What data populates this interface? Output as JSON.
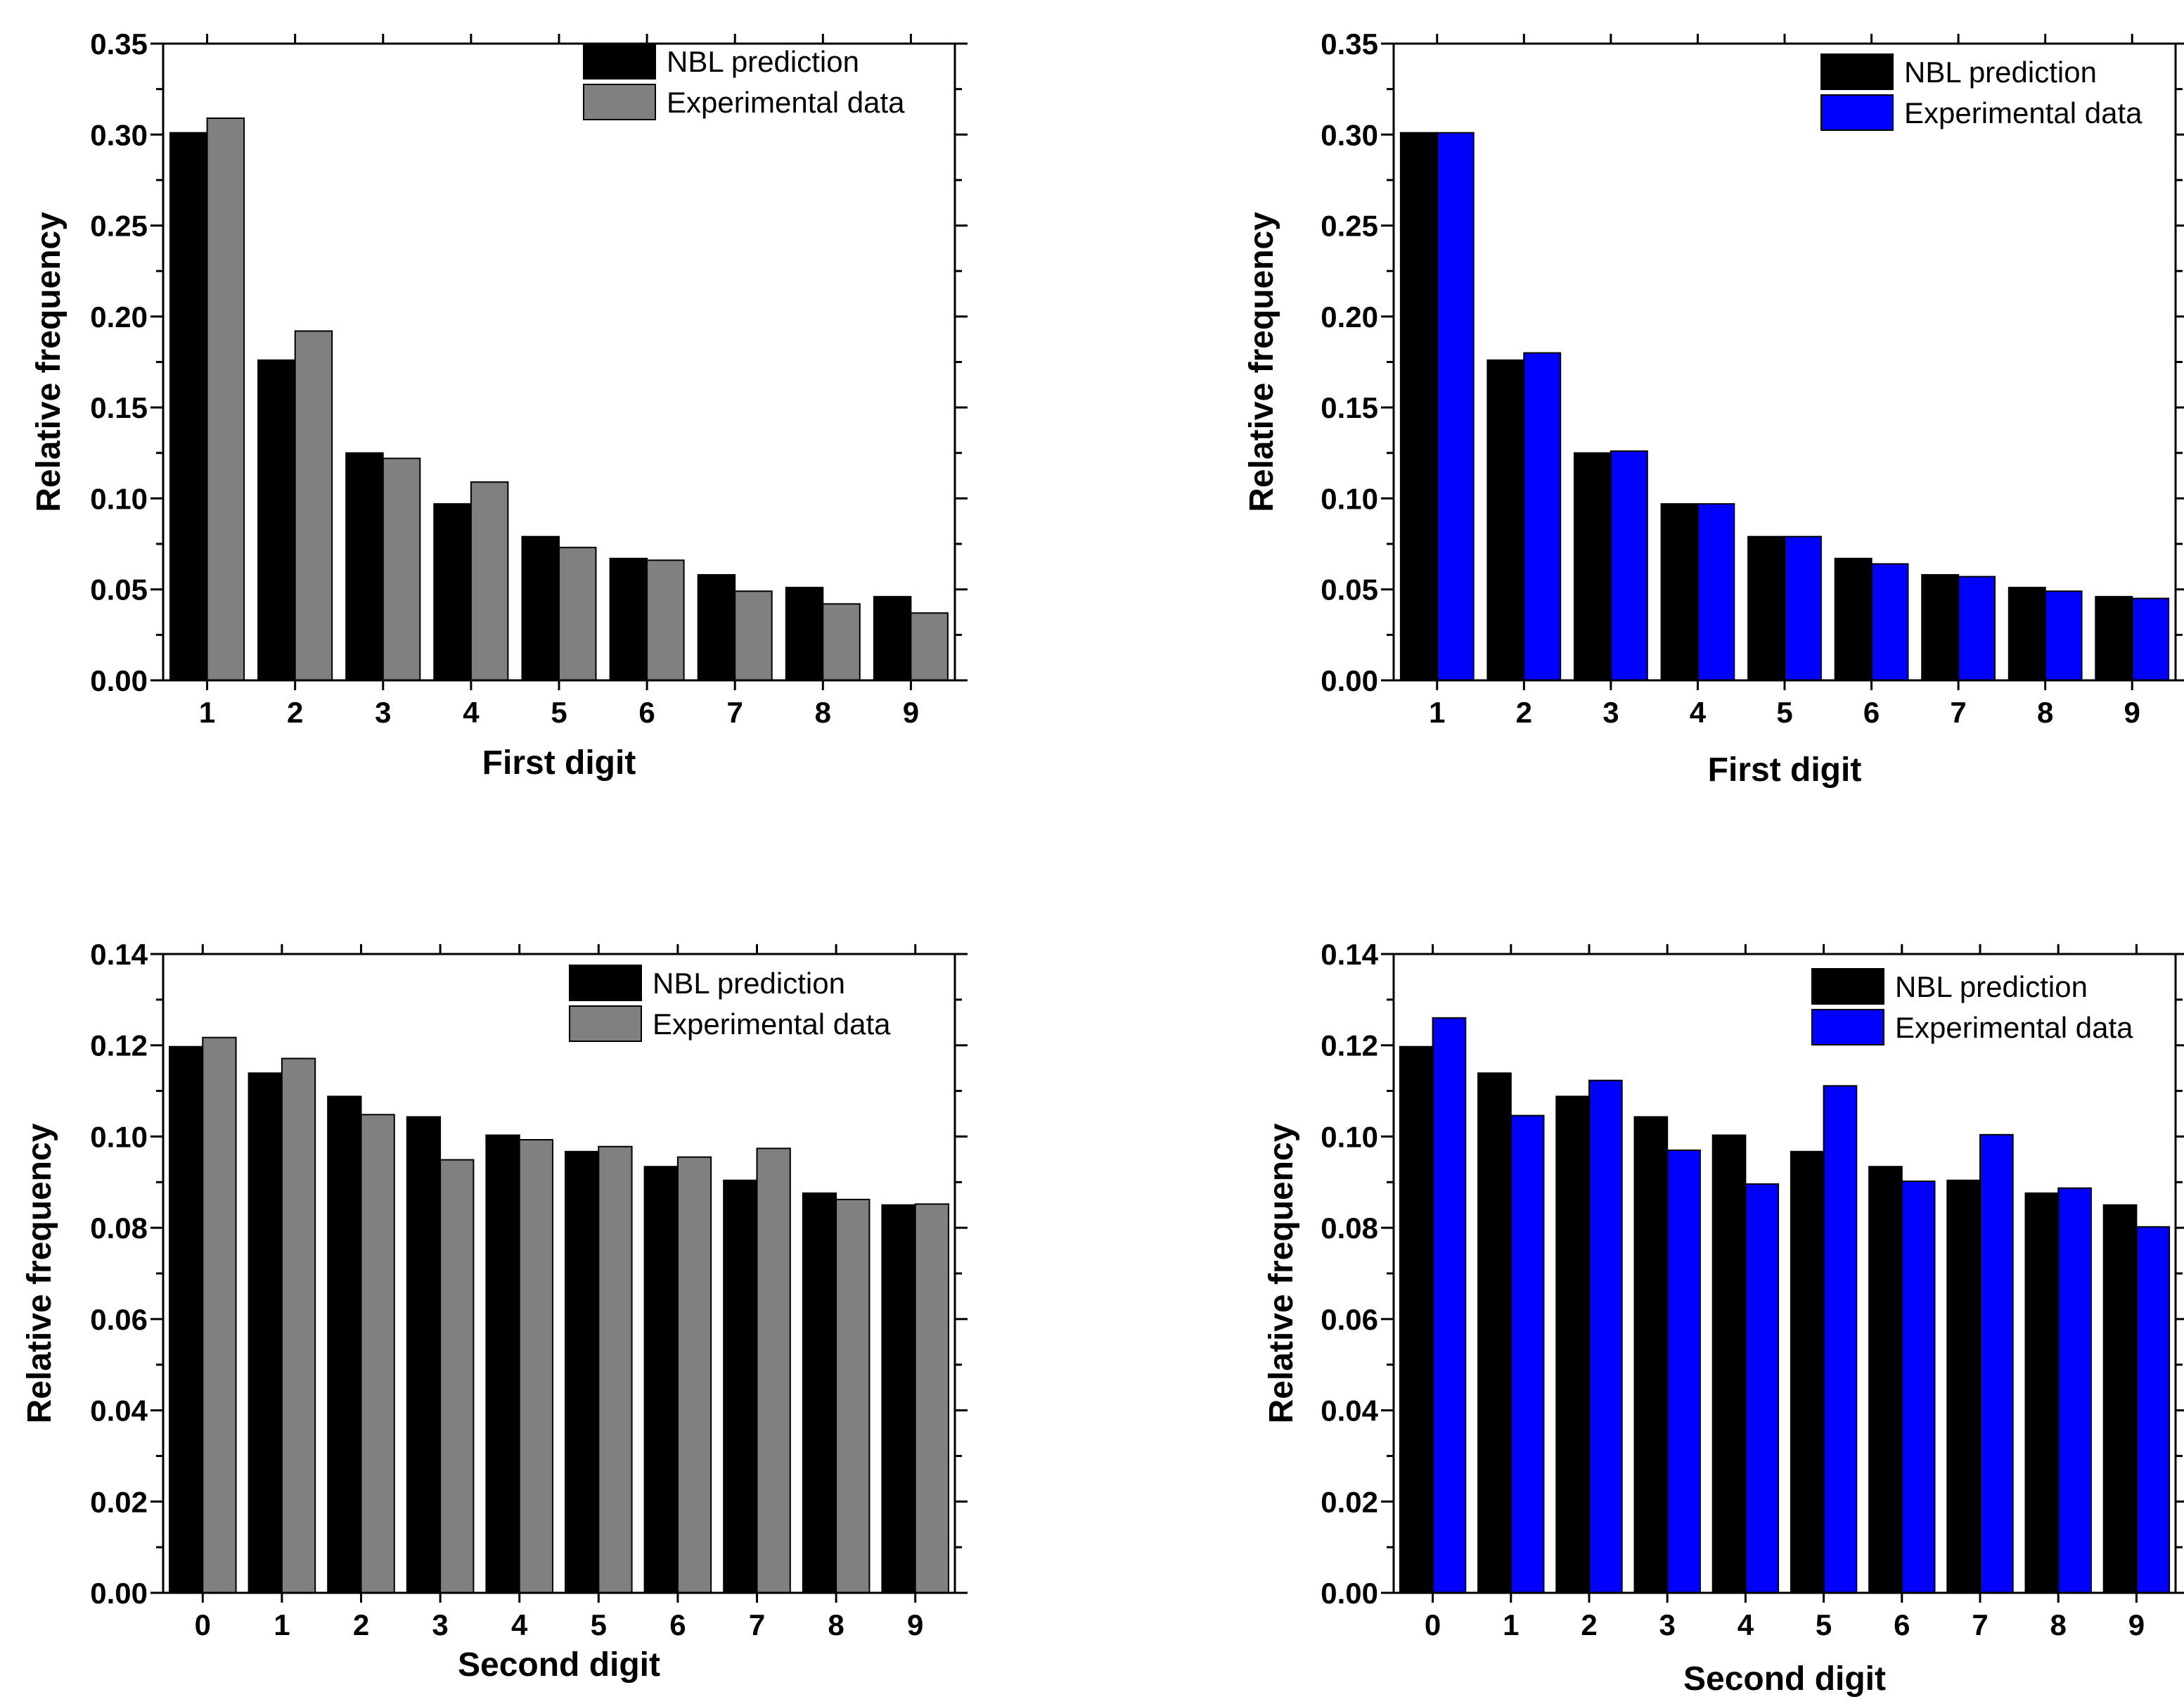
{
  "chart_data": [
    {
      "id": "first-digit-gray",
      "type": "bar",
      "categories": [
        "1",
        "2",
        "3",
        "4",
        "5",
        "6",
        "7",
        "8",
        "9"
      ],
      "series": [
        {
          "name": "NBL prediction",
          "color": "#000000",
          "values": [
            0.301,
            0.176,
            0.125,
            0.097,
            0.079,
            0.067,
            0.058,
            0.051,
            0.046
          ]
        },
        {
          "name": "Experimental data",
          "color": "#808080",
          "values": [
            0.309,
            0.192,
            0.122,
            0.109,
            0.073,
            0.066,
            0.049,
            0.042,
            0.037
          ]
        }
      ],
      "xlabel": "First digit",
      "ylabel": "Relative frequency",
      "ylim": [
        0,
        0.35
      ],
      "yticks": [
        "0.00",
        "0.05",
        "0.10",
        "0.15",
        "0.20",
        "0.25",
        "0.30",
        "0.35"
      ],
      "legend_position": "top-right"
    },
    {
      "id": "first-digit-blue",
      "type": "bar",
      "categories": [
        "1",
        "2",
        "3",
        "4",
        "5",
        "6",
        "7",
        "8",
        "9"
      ],
      "series": [
        {
          "name": "NBL prediction",
          "color": "#000000",
          "values": [
            0.301,
            0.176,
            0.125,
            0.097,
            0.079,
            0.067,
            0.058,
            0.051,
            0.046
          ]
        },
        {
          "name": "Experimental data",
          "color": "#0000ff",
          "values": [
            0.301,
            0.18,
            0.126,
            0.097,
            0.079,
            0.064,
            0.057,
            0.049,
            0.045
          ]
        }
      ],
      "xlabel": "First digit",
      "ylabel": "Relative frequency",
      "ylim": [
        0,
        0.35
      ],
      "yticks": [
        "0.00",
        "0.05",
        "0.10",
        "0.15",
        "0.20",
        "0.25",
        "0.30",
        "0.35"
      ],
      "legend_position": "top-right"
    },
    {
      "id": "second-digit-gray",
      "type": "bar",
      "categories": [
        "0",
        "1",
        "2",
        "3",
        "4",
        "5",
        "6",
        "7",
        "8",
        "9"
      ],
      "series": [
        {
          "name": "NBL prediction",
          "color": "#000000",
          "values": [
            0.1197,
            0.1139,
            0.1088,
            0.1043,
            0.1003,
            0.0967,
            0.0934,
            0.0904,
            0.0876,
            0.085
          ]
        },
        {
          "name": "Experimental data",
          "color": "#808080",
          "values": [
            0.1217,
            0.1171,
            0.1048,
            0.0949,
            0.0993,
            0.0978,
            0.0955,
            0.0974,
            0.0862,
            0.0852
          ]
        }
      ],
      "xlabel": "Second digit",
      "ylabel": "Relative frequency",
      "ylim": [
        0,
        0.14
      ],
      "yticks": [
        "0.00",
        "0.02",
        "0.04",
        "0.06",
        "0.08",
        "0.10",
        "0.12",
        "0.14"
      ],
      "legend_position": "top-right"
    },
    {
      "id": "second-digit-blue",
      "type": "bar",
      "categories": [
        "0",
        "1",
        "2",
        "3",
        "4",
        "5",
        "6",
        "7",
        "8",
        "9"
      ],
      "series": [
        {
          "name": "NBL prediction",
          "color": "#000000",
          "values": [
            0.1197,
            0.1139,
            0.1088,
            0.1043,
            0.1003,
            0.0967,
            0.0934,
            0.0904,
            0.0876,
            0.085
          ]
        },
        {
          "name": "Experimental data",
          "color": "#0000ff",
          "values": [
            0.126,
            0.1046,
            0.1123,
            0.097,
            0.0896,
            0.1111,
            0.0902,
            0.1004,
            0.0887,
            0.0802
          ]
        }
      ],
      "xlabel": "Second digit",
      "ylabel": "Relative frequency",
      "ylim": [
        0,
        0.14
      ],
      "yticks": [
        "0.00",
        "0.02",
        "0.04",
        "0.06",
        "0.08",
        "0.10",
        "0.12",
        "0.14"
      ],
      "legend_position": "top-right"
    }
  ]
}
